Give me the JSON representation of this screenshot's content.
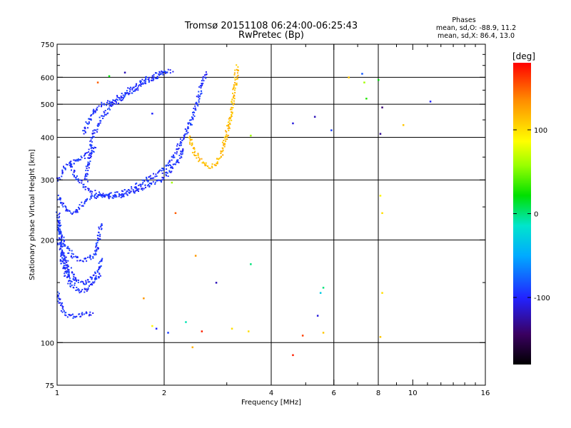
{
  "header": {
    "title_line1": "Tromsø 20151108 06:24:00-06:25:43",
    "title_line2": "RwPretec (Bp)",
    "stats_heading": "Phases",
    "stats_o": "mean, sd,O: -88.9, 11.2",
    "stats_x": "mean, sd,X: 86.4, 13.0"
  },
  "chart_data": {
    "type": "scatter",
    "title": "Tromsø 20151108 06:24:00-06:25:43",
    "subtitle": "RwPretec (Bp)",
    "xlabel": "Frequency [MHz]",
    "ylabel": "Stationary phase Virtual Height [km]",
    "x_scale": "log",
    "y_scale": "log",
    "xlim": [
      1,
      16
    ],
    "ylim": [
      75,
      750
    ],
    "x_ticks": [
      1,
      2,
      4,
      6,
      8,
      10,
      16
    ],
    "x_tick_labels": [
      "1",
      "2",
      "4",
      "6",
      "8",
      "10",
      "16"
    ],
    "x_grid": [
      2,
      4,
      6,
      8
    ],
    "y_ticks": [
      75,
      100,
      200,
      300,
      400,
      500,
      600,
      750
    ],
    "y_tick_labels": [
      "75",
      "100",
      "200",
      "300",
      "400",
      "500",
      "600",
      "750"
    ],
    "y_grid": [
      100,
      200,
      300,
      400,
      500,
      600
    ],
    "colorbar": {
      "label": "[deg]",
      "range": [
        -180,
        180
      ],
      "ticks": [
        100,
        0,
        -100
      ],
      "tick_labels": [
        "100",
        "0",
        "-100"
      ]
    },
    "traces": [
      {
        "phase_deg": -95,
        "points": [
          [
            1.0,
            270
          ],
          [
            1.03,
            255
          ],
          [
            1.06,
            245
          ],
          [
            1.1,
            240
          ],
          [
            1.15,
            250
          ],
          [
            1.2,
            262
          ],
          [
            1.28,
            270
          ],
          [
            1.38,
            272
          ],
          [
            1.5,
            275
          ],
          [
            1.62,
            285
          ],
          [
            1.72,
            295
          ],
          [
            1.82,
            305
          ],
          [
            1.95,
            318
          ],
          [
            2.05,
            335
          ],
          [
            2.15,
            365
          ],
          [
            2.25,
            400
          ],
          [
            2.35,
            440
          ],
          [
            2.42,
            480
          ],
          [
            2.48,
            520
          ],
          [
            2.53,
            560
          ],
          [
            2.58,
            600
          ],
          [
            2.62,
            630
          ]
        ]
      },
      {
        "phase_deg": -95,
        "points": [
          [
            1.08,
            340
          ],
          [
            1.12,
            310
          ],
          [
            1.18,
            290
          ],
          [
            1.25,
            278
          ],
          [
            1.35,
            270
          ],
          [
            1.45,
            268
          ],
          [
            1.58,
            275
          ],
          [
            1.7,
            283
          ],
          [
            1.8,
            292
          ],
          [
            1.95,
            302
          ],
          [
            2.05,
            315
          ],
          [
            2.18,
            345
          ],
          [
            2.28,
            375
          ]
        ]
      },
      {
        "phase_deg": -95,
        "points": [
          [
            1.18,
            410
          ],
          [
            1.22,
            450
          ],
          [
            1.27,
            480
          ],
          [
            1.32,
            500
          ],
          [
            1.4,
            510
          ],
          [
            1.5,
            530
          ],
          [
            1.6,
            555
          ],
          [
            1.7,
            580
          ],
          [
            1.8,
            600
          ],
          [
            1.9,
            615
          ],
          [
            2.0,
            625
          ],
          [
            2.1,
            632
          ]
        ]
      },
      {
        "phase_deg": -95,
        "points": [
          [
            1.2,
            300
          ],
          [
            1.22,
            340
          ],
          [
            1.24,
            380
          ],
          [
            1.26,
            410
          ],
          [
            1.3,
            440
          ],
          [
            1.35,
            470
          ],
          [
            1.42,
            500
          ],
          [
            1.5,
            520
          ],
          [
            1.6,
            545
          ],
          [
            1.72,
            570
          ],
          [
            1.82,
            590
          ],
          [
            1.92,
            610
          ],
          [
            2.02,
            625
          ]
        ]
      },
      {
        "phase_deg": -95,
        "points": [
          [
            1.0,
            230
          ],
          [
            1.02,
            210
          ],
          [
            1.05,
            195
          ],
          [
            1.08,
            185
          ],
          [
            1.12,
            178
          ],
          [
            1.18,
            175
          ],
          [
            1.24,
            178
          ],
          [
            1.28,
            185
          ],
          [
            1.3,
            200
          ],
          [
            1.32,
            225
          ]
        ]
      },
      {
        "phase_deg": -95,
        "points": [
          [
            1.0,
            200
          ],
          [
            1.04,
            180
          ],
          [
            1.08,
            165
          ],
          [
            1.12,
            155
          ],
          [
            1.18,
            150
          ],
          [
            1.24,
            155
          ],
          [
            1.3,
            165
          ],
          [
            1.34,
            178
          ]
        ]
      },
      {
        "phase_deg": -95,
        "points": [
          [
            1.02,
            180
          ],
          [
            1.05,
            160
          ],
          [
            1.08,
            150
          ],
          [
            1.12,
            145
          ],
          [
            1.16,
            142
          ],
          [
            1.2,
            143
          ],
          [
            1.26,
            150
          ],
          [
            1.32,
            162
          ]
        ]
      },
      {
        "phase_deg": -95,
        "points": [
          [
            1.0,
            140
          ],
          [
            1.03,
            125
          ],
          [
            1.06,
            121
          ],
          [
            1.1,
            120
          ],
          [
            1.15,
            121
          ],
          [
            1.2,
            122
          ],
          [
            1.26,
            122
          ]
        ]
      },
      {
        "phase_deg": -95,
        "points": [
          [
            1.0,
            240
          ],
          [
            1.01,
            220
          ],
          [
            1.02,
            200
          ],
          [
            1.03,
            185
          ],
          [
            1.05,
            170
          ],
          [
            1.08,
            158
          ],
          [
            1.12,
            150
          ]
        ]
      },
      {
        "phase_deg": -95,
        "points": [
          [
            1.0,
            300
          ],
          [
            1.03,
            320
          ],
          [
            1.06,
            330
          ],
          [
            1.1,
            338
          ],
          [
            1.16,
            350
          ],
          [
            1.22,
            360
          ],
          [
            1.28,
            375
          ]
        ]
      },
      {
        "phase_deg": 115,
        "points": [
          [
            2.35,
            405
          ],
          [
            2.38,
            380
          ],
          [
            2.42,
            365
          ],
          [
            2.48,
            350
          ],
          [
            2.55,
            340
          ],
          [
            2.62,
            332
          ],
          [
            2.7,
            330
          ],
          [
            2.78,
            335
          ],
          [
            2.85,
            350
          ],
          [
            2.92,
            375
          ],
          [
            2.97,
            400
          ],
          [
            3.02,
            430
          ],
          [
            3.06,
            460
          ],
          [
            3.1,
            500
          ],
          [
            3.13,
            540
          ],
          [
            3.16,
            580
          ],
          [
            3.18,
            620
          ],
          [
            3.2,
            650
          ]
        ]
      }
    ],
    "scattered_points": [
      {
        "x": 4.6,
        "y": 440,
        "phase_deg": -110
      },
      {
        "x": 5.3,
        "y": 460,
        "phase_deg": -120
      },
      {
        "x": 5.9,
        "y": 420,
        "phase_deg": -90
      },
      {
        "x": 6.6,
        "y": 600,
        "phase_deg": 110
      },
      {
        "x": 7.2,
        "y": 615,
        "phase_deg": -80
      },
      {
        "x": 7.3,
        "y": 580,
        "phase_deg": 60
      },
      {
        "x": 7.4,
        "y": 520,
        "phase_deg": 30
      },
      {
        "x": 8.0,
        "y": 590,
        "phase_deg": 20
      },
      {
        "x": 8.2,
        "y": 490,
        "phase_deg": -140
      },
      {
        "x": 8.1,
        "y": 410,
        "phase_deg": -130
      },
      {
        "x": 9.4,
        "y": 435,
        "phase_deg": 110
      },
      {
        "x": 11.2,
        "y": 510,
        "phase_deg": -100
      },
      {
        "x": 5.6,
        "y": 145,
        "phase_deg": 0
      },
      {
        "x": 5.5,
        "y": 140,
        "phase_deg": -30
      },
      {
        "x": 5.4,
        "y": 120,
        "phase_deg": -110
      },
      {
        "x": 5.6,
        "y": 107,
        "phase_deg": 110
      },
      {
        "x": 4.9,
        "y": 105,
        "phase_deg": 160
      },
      {
        "x": 4.6,
        "y": 92,
        "phase_deg": 170
      },
      {
        "x": 8.1,
        "y": 270,
        "phase_deg": 90
      },
      {
        "x": 8.2,
        "y": 240,
        "phase_deg": 100
      },
      {
        "x": 8.2,
        "y": 140,
        "phase_deg": 100
      },
      {
        "x": 8.1,
        "y": 104,
        "phase_deg": 110
      },
      {
        "x": 2.1,
        "y": 295,
        "phase_deg": 60
      },
      {
        "x": 2.15,
        "y": 240,
        "phase_deg": 150
      },
      {
        "x": 2.45,
        "y": 180,
        "phase_deg": 130
      },
      {
        "x": 2.8,
        "y": 150,
        "phase_deg": -120
      },
      {
        "x": 3.5,
        "y": 170,
        "phase_deg": 0
      },
      {
        "x": 1.75,
        "y": 135,
        "phase_deg": 130
      },
      {
        "x": 1.9,
        "y": 110,
        "phase_deg": -100
      },
      {
        "x": 1.85,
        "y": 112,
        "phase_deg": 90
      },
      {
        "x": 2.05,
        "y": 107,
        "phase_deg": -90
      },
      {
        "x": 2.3,
        "y": 115,
        "phase_deg": -10
      },
      {
        "x": 2.55,
        "y": 108,
        "phase_deg": 170
      },
      {
        "x": 2.4,
        "y": 97,
        "phase_deg": 120
      },
      {
        "x": 3.1,
        "y": 110,
        "phase_deg": 100
      },
      {
        "x": 3.45,
        "y": 108,
        "phase_deg": 100
      },
      {
        "x": 3.5,
        "y": 405,
        "phase_deg": 60
      },
      {
        "x": 1.4,
        "y": 605,
        "phase_deg": 20
      },
      {
        "x": 1.55,
        "y": 620,
        "phase_deg": -120
      },
      {
        "x": 1.3,
        "y": 580,
        "phase_deg": 150
      },
      {
        "x": 1.85,
        "y": 470,
        "phase_deg": -100
      }
    ]
  }
}
